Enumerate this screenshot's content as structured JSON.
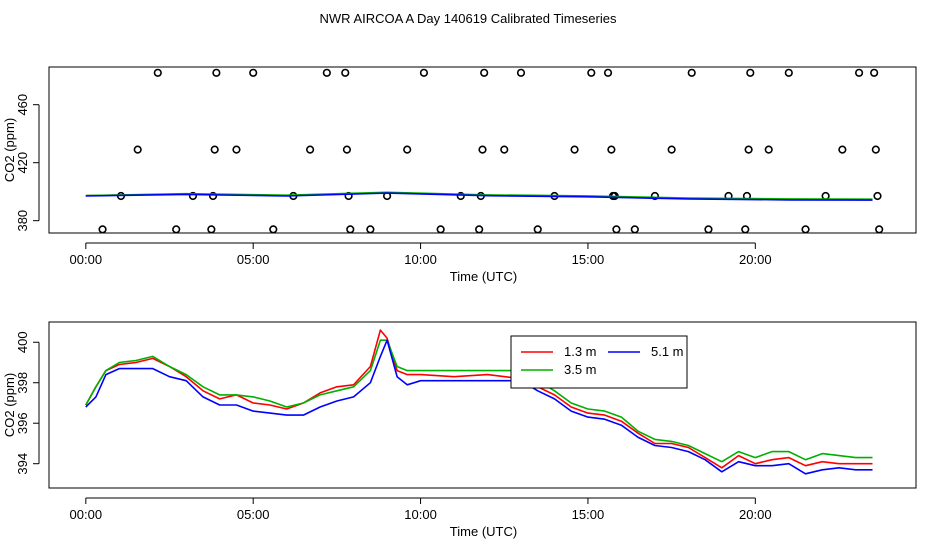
{
  "chart_data": {
    "title": "NWR AIRCOA A  Day 140619  Calibrated Timeseries",
    "panels": [
      {
        "type": "scatter",
        "xlabel": "Time (UTC)",
        "ylabel": "CO2 (ppm)",
        "xlim": [
          -1.1,
          24.8
        ],
        "ylim": [
          371.5,
          486
        ],
        "x_ticks": [
          0,
          5,
          10,
          15,
          20
        ],
        "x_tick_labels": [
          "00:00",
          "05:00",
          "10:00",
          "15:00",
          "20:00"
        ],
        "y_ticks": [
          380,
          420,
          460
        ],
        "y_tick_labels": [
          "380",
          "420",
          "460"
        ],
        "series": [
          {
            "name": "calibration points",
            "marker": "circle",
            "color": "#000000",
            "points": [
              [
                0.5,
                374
              ],
              [
                1.05,
                397
              ],
              [
                1.55,
                429
              ],
              [
                2.15,
                482
              ],
              [
                2.7,
                374
              ],
              [
                3.2,
                397
              ],
              [
                3.75,
                374
              ],
              [
                3.8,
                397
              ],
              [
                3.85,
                429
              ],
              [
                3.9,
                482
              ],
              [
                4.5,
                429
              ],
              [
                5.0,
                482
              ],
              [
                5.6,
                374
              ],
              [
                6.2,
                397
              ],
              [
                6.7,
                429
              ],
              [
                7.2,
                482
              ],
              [
                7.75,
                482
              ],
              [
                7.8,
                429
              ],
              [
                7.85,
                397
              ],
              [
                7.9,
                374
              ],
              [
                8.5,
                374
              ],
              [
                9.0,
                397
              ],
              [
                9.6,
                429
              ],
              [
                10.1,
                482
              ],
              [
                10.6,
                374
              ],
              [
                11.2,
                397
              ],
              [
                11.75,
                374
              ],
              [
                11.8,
                397
              ],
              [
                11.85,
                429
              ],
              [
                11.9,
                482
              ],
              [
                12.5,
                429
              ],
              [
                13.0,
                482
              ],
              [
                13.5,
                374
              ],
              [
                14.0,
                397
              ],
              [
                14.6,
                429
              ],
              [
                15.1,
                482
              ],
              [
                15.6,
                482
              ],
              [
                15.7,
                429
              ],
              [
                15.75,
                397
              ],
              [
                15.8,
                397
              ],
              [
                15.85,
                374
              ],
              [
                16.4,
                374
              ],
              [
                17.0,
                397
              ],
              [
                17.5,
                429
              ],
              [
                18.1,
                482
              ],
              [
                18.6,
                374
              ],
              [
                19.2,
                397
              ],
              [
                19.7,
                374
              ],
              [
                19.75,
                397
              ],
              [
                19.8,
                429
              ],
              [
                19.85,
                482
              ],
              [
                20.4,
                429
              ],
              [
                21.0,
                482
              ],
              [
                21.5,
                374
              ],
              [
                22.1,
                397
              ],
              [
                22.6,
                429
              ],
              [
                23.1,
                482
              ],
              [
                23.55,
                482
              ],
              [
                23.6,
                429
              ],
              [
                23.65,
                397
              ],
              [
                23.7,
                374
              ]
            ]
          },
          {
            "name": "1.3 m",
            "color": "#ff0000",
            "x": [
              0,
              3,
              6,
              9,
              12,
              15,
              18,
              21,
              23.5
            ],
            "y": [
              397.2,
              398.4,
              397.3,
              399.3,
              397.5,
              396.8,
              395.2,
              394.6,
              394.4
            ]
          },
          {
            "name": "3.5 m",
            "color": "#00b000",
            "x": [
              0,
              3,
              6,
              9,
              12,
              15,
              18,
              21,
              23.5
            ],
            "y": [
              397.4,
              398.6,
              397.6,
              399.6,
              397.8,
              397.1,
              395.6,
              395.0,
              394.8
            ]
          },
          {
            "name": "5.1 m",
            "color": "#0000ff",
            "x": [
              0,
              3,
              6,
              9,
              12,
              15,
              18,
              21,
              23.5
            ],
            "y": [
              397.0,
              398.1,
              397.0,
              399.0,
              397.2,
              396.5,
              395.0,
              394.3,
              394.2
            ]
          }
        ]
      },
      {
        "type": "line",
        "xlabel": "Time (UTC)",
        "ylabel": "CO2 (ppm)",
        "xlim": [
          -1.1,
          24.8
        ],
        "ylim": [
          392.8,
          401
        ],
        "x_ticks": [
          0,
          5,
          10,
          15,
          20
        ],
        "x_tick_labels": [
          "00:00",
          "05:00",
          "10:00",
          "15:00",
          "20:00"
        ],
        "y_ticks": [
          394,
          396,
          398,
          400
        ],
        "y_tick_labels": [
          "394",
          "396",
          "398",
          "400"
        ],
        "legend": {
          "position": "top-center",
          "entries": [
            {
              "label": "1.3 m",
              "color": "#ff0000"
            },
            {
              "label": "5.1 m",
              "color": "#0000ff"
            },
            {
              "label": "3.5 m",
              "color": "#00b000"
            }
          ]
        },
        "series": [
          {
            "name": "1.3 m",
            "color": "#ff0000",
            "x": [
              0,
              0.3,
              0.6,
              1,
              1.5,
              2,
              2.5,
              3,
              3.5,
              4,
              4.5,
              5,
              5.5,
              6,
              6.5,
              7,
              7.5,
              8,
              8.5,
              8.8,
              9,
              9.3,
              9.6,
              10,
              11,
              12,
              13,
              13.5,
              14,
              14.5,
              15,
              15.5,
              16,
              16.5,
              17,
              17.5,
              18,
              18.5,
              19,
              19.5,
              20,
              20.5,
              21,
              21.5,
              22,
              22.5,
              23,
              23.5
            ],
            "y": [
              396.9,
              397.8,
              398.6,
              398.9,
              399.0,
              399.2,
              398.8,
              398.3,
              397.6,
              397.2,
              397.4,
              397.0,
              396.9,
              396.7,
              397.0,
              397.5,
              397.8,
              397.9,
              398.8,
              400.6,
              400.2,
              398.6,
              398.4,
              398.4,
              398.3,
              398.4,
              398.2,
              397.8,
              397.4,
              396.8,
              396.5,
              396.4,
              396.1,
              395.5,
              395.0,
              395.0,
              394.8,
              394.3,
              393.8,
              394.4,
              394.0,
              394.2,
              394.3,
              393.9,
              394.1,
              394.0,
              394.0,
              394.0
            ]
          },
          {
            "name": "3.5 m",
            "color": "#00b000",
            "x": [
              0,
              0.3,
              0.6,
              1,
              1.5,
              2,
              2.5,
              3,
              3.5,
              4,
              4.5,
              5,
              5.5,
              6,
              6.5,
              7,
              7.5,
              8,
              8.5,
              8.8,
              9,
              9.3,
              9.6,
              10,
              11,
              12,
              13,
              13.5,
              14,
              14.5,
              15,
              15.5,
              16,
              16.5,
              17,
              17.5,
              18,
              18.5,
              19,
              19.5,
              20,
              20.5,
              21,
              21.5,
              22,
              22.5,
              23,
              23.5
            ],
            "y": [
              396.9,
              397.8,
              398.6,
              399.0,
              399.1,
              399.3,
              398.8,
              398.4,
              397.8,
              397.4,
              397.4,
              397.3,
              397.1,
              396.8,
              397.0,
              397.4,
              397.6,
              397.8,
              398.6,
              400.1,
              400.1,
              398.8,
              398.6,
              398.6,
              398.6,
              398.6,
              398.6,
              398.1,
              397.6,
              397.0,
              396.7,
              396.6,
              396.3,
              395.6,
              395.2,
              395.1,
              394.9,
              394.5,
              394.1,
              394.6,
              394.3,
              394.6,
              394.6,
              394.2,
              394.5,
              394.4,
              394.3,
              394.3
            ]
          },
          {
            "name": "5.1 m",
            "color": "#0000ff",
            "x": [
              0,
              0.3,
              0.6,
              1,
              1.5,
              2,
              2.5,
              3,
              3.5,
              4,
              4.5,
              5,
              5.5,
              6,
              6.5,
              7,
              7.5,
              8,
              8.5,
              8.8,
              9,
              9.3,
              9.6,
              10,
              11,
              12,
              13,
              13.5,
              14,
              14.5,
              15,
              15.5,
              16,
              16.5,
              17,
              17.5,
              18,
              18.5,
              19,
              19.5,
              20,
              20.5,
              21,
              21.5,
              22,
              22.5,
              23,
              23.5
            ],
            "y": [
              396.8,
              397.3,
              398.4,
              398.7,
              398.7,
              398.7,
              398.3,
              398.1,
              397.3,
              396.9,
              396.9,
              396.6,
              396.5,
              396.4,
              396.4,
              396.8,
              397.1,
              397.3,
              398.0,
              399.3,
              400.1,
              398.3,
              397.9,
              398.1,
              398.1,
              398.1,
              398.1,
              397.6,
              397.2,
              396.6,
              396.3,
              396.2,
              395.9,
              395.3,
              394.9,
              394.8,
              394.6,
              394.2,
              393.6,
              394.1,
              393.9,
              393.9,
              394.0,
              393.5,
              393.7,
              393.8,
              393.7,
              393.7
            ]
          }
        ]
      }
    ]
  }
}
